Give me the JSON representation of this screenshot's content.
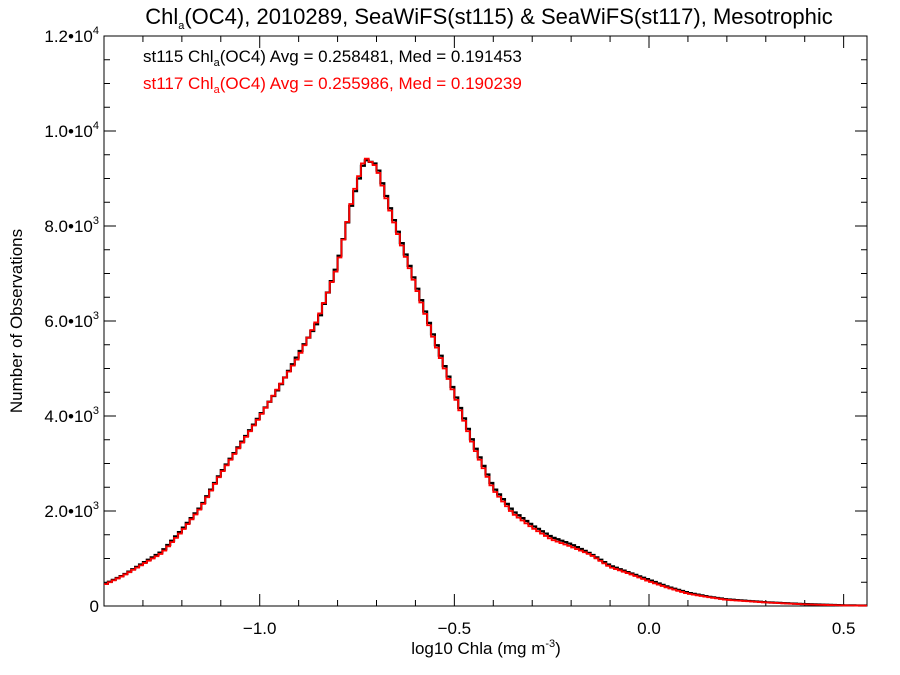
{
  "chart_data": {
    "type": "line",
    "step": true,
    "title": "Chla(OC4), 2010289, SeaWiFS(st115) & SeaWiFS(st117), Mesotrophic",
    "title_parts": {
      "pre": "Chl",
      "sub": "a",
      "post": "(OC4), 2010289, SeaWiFS(st115) & SeaWiFS(st117), Mesotrophic"
    },
    "xlabel": "log10 Chla (mg m-3)",
    "xlabel_parts": {
      "pre": "log10 Chla (mg m",
      "sup": "-3",
      "post": ")"
    },
    "ylabel": "Number of Observations",
    "xlim": [
      -1.4,
      0.56
    ],
    "ylim": [
      0,
      12000
    ],
    "grid": false,
    "x_ticks": [
      {
        "value": -1.0,
        "label": "−1.0"
      },
      {
        "value": -0.5,
        "label": "−0.5"
      },
      {
        "value": 0.0,
        "label": "0.0"
      },
      {
        "value": 0.5,
        "label": "0.5"
      }
    ],
    "y_ticks": [
      {
        "value": 0,
        "mant": "0",
        "exp": ""
      },
      {
        "value": 2000,
        "mant": "2.0•10",
        "exp": "3"
      },
      {
        "value": 4000,
        "mant": "4.0•10",
        "exp": "3"
      },
      {
        "value": 6000,
        "mant": "6.0•10",
        "exp": "3"
      },
      {
        "value": 8000,
        "mant": "8.0•10",
        "exp": "3"
      },
      {
        "value": 10000,
        "mant": "1.0•10",
        "exp": "4"
      },
      {
        "value": 12000,
        "mant": "1.2•10",
        "exp": "4"
      }
    ],
    "annotations": [
      {
        "series": "st115",
        "pre": "st115 Chl",
        "sub": "a",
        "post": "(OC4) Avg = 0.258481, Med = 0.191453",
        "color": "#000000"
      },
      {
        "series": "st117",
        "pre": "st117 Chl",
        "sub": "a",
        "post": "(OC4) Avg = 0.255986, Med = 0.190239",
        "color": "#ff0000"
      }
    ],
    "x": [
      -1.4,
      -1.35,
      -1.3,
      -1.25,
      -1.2,
      -1.15,
      -1.1,
      -1.05,
      -1.0,
      -0.95,
      -0.9,
      -0.85,
      -0.8,
      -0.76,
      -0.73,
      -0.7,
      -0.67,
      -0.65,
      -0.6,
      -0.55,
      -0.5,
      -0.45,
      -0.4,
      -0.35,
      -0.3,
      -0.25,
      -0.2,
      -0.15,
      -0.1,
      -0.05,
      0.0,
      0.05,
      0.1,
      0.15,
      0.2,
      0.3,
      0.4,
      0.5,
      0.56
    ],
    "series": [
      {
        "name": "st115",
        "color": "#000000",
        "values": [
          450,
          650,
          900,
          1150,
          1600,
          2100,
          2800,
          3400,
          4000,
          4600,
          5300,
          6000,
          7200,
          8600,
          9400,
          9300,
          8500,
          8000,
          6800,
          5600,
          4500,
          3400,
          2500,
          2000,
          1700,
          1450,
          1300,
          1100,
          850,
          700,
          550,
          400,
          280,
          200,
          140,
          80,
          40,
          15,
          10
        ]
      },
      {
        "name": "st117",
        "color": "#ff0000",
        "values": [
          440,
          640,
          880,
          1120,
          1570,
          2080,
          2780,
          3380,
          3980,
          4620,
          5250,
          6050,
          7150,
          8650,
          9450,
          9250,
          8450,
          7950,
          6750,
          5550,
          4450,
          3350,
          2450,
          1950,
          1650,
          1400,
          1250,
          1080,
          820,
          680,
          520,
          380,
          260,
          190,
          130,
          75,
          35,
          12,
          8
        ]
      }
    ]
  }
}
